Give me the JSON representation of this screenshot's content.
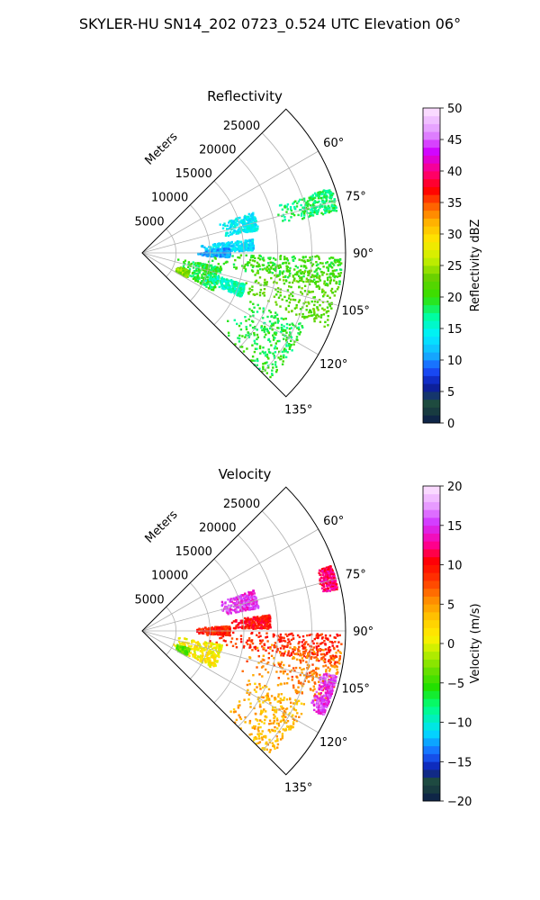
{
  "figure": {
    "suptitle": "SKYLER-HU  SN14_202  0723_0.524 UTC Elevation 06°"
  },
  "chart_data": [
    {
      "type": "heatmap",
      "projection": "polar-sector",
      "title": "Reflectivity",
      "radial_label": "Meters",
      "r_ticks": [
        5000,
        10000,
        15000,
        20000,
        25000
      ],
      "r_tick_labels": [
        "5000",
        "10000",
        "15000",
        "20000",
        "25000"
      ],
      "rlim": [
        0,
        30000
      ],
      "theta_ticks": [
        60,
        75,
        90,
        105,
        120,
        135
      ],
      "theta_tick_labels": [
        "60°",
        "75°",
        "90°",
        "105°",
        "120°",
        "135°"
      ],
      "theta_range_deg": [
        45,
        135
      ],
      "grid": true,
      "colorbar": {
        "label": "Reflectivity dBZ",
        "vmin": 0,
        "vmax": 50,
        "ticks": [
          0,
          5,
          10,
          15,
          20,
          25,
          30,
          35,
          40,
          45,
          50
        ],
        "tick_labels": [
          "0",
          "5",
          "10",
          "15",
          "20",
          "25",
          "30",
          "35",
          "40",
          "45",
          "50"
        ]
      },
      "echo_regions": [
        {
          "theta": [
            70,
            79
          ],
          "r": [
            12000,
            17500
          ],
          "value": 14
        },
        {
          "theta": [
            71,
            78
          ],
          "r": [
            20500,
            29500
          ],
          "value": 18
        },
        {
          "theta": [
            83,
            89
          ],
          "r": [
            8500,
            16500
          ],
          "value": 13
        },
        {
          "theta": [
            87,
            93
          ],
          "r": [
            8000,
            13000
          ],
          "value": 11
        },
        {
          "theta": [
            91,
            100
          ],
          "r": [
            9000,
            29500
          ],
          "value": 20
        },
        {
          "theta": [
            96,
            112
          ],
          "r": [
            14500,
            29500
          ],
          "value": 22
        },
        {
          "theta": [
            100,
            118
          ],
          "r": [
            5000,
            12000
          ],
          "value": 19
        },
        {
          "theta": [
            111,
            119
          ],
          "r": [
            5500,
            7500
          ],
          "value": 24
        },
        {
          "theta": [
            114,
            135
          ],
          "r": [
            16000,
            26500
          ],
          "value": 19
        },
        {
          "theta": [
            107,
            114
          ],
          "r": [
            10000,
            16000
          ],
          "value": 16
        }
      ]
    },
    {
      "type": "heatmap",
      "projection": "polar-sector",
      "title": "Velocity",
      "radial_label": "Meters",
      "r_ticks": [
        5000,
        10000,
        15000,
        20000,
        25000
      ],
      "r_tick_labels": [
        "5000",
        "10000",
        "15000",
        "20000",
        "25000"
      ],
      "rlim": [
        0,
        30000
      ],
      "theta_ticks": [
        60,
        75,
        90,
        105,
        120,
        135
      ],
      "theta_tick_labels": [
        "60°",
        "75°",
        "90°",
        "105°",
        "120°",
        "135°"
      ],
      "theta_range_deg": [
        45,
        135
      ],
      "grid": true,
      "colorbar": {
        "label": "Velocity (m/s)",
        "vmin": -20,
        "vmax": 20,
        "ticks": [
          -20,
          -15,
          -10,
          -5,
          0,
          5,
          10,
          15,
          20
        ],
        "tick_labels": [
          "−20",
          "−15",
          "−10",
          "−5",
          "0",
          "5",
          "10",
          "15",
          "20"
        ]
      },
      "echo_regions": [
        {
          "theta": [
            70,
            79
          ],
          "r": [
            12000,
            17500
          ],
          "value": 15
        },
        {
          "theta": [
            71,
            78
          ],
          "r": [
            27000,
            29500
          ],
          "value": 12
        },
        {
          "theta": [
            83,
            89
          ],
          "r": [
            13000,
            19000
          ],
          "value": 10
        },
        {
          "theta": [
            87,
            93
          ],
          "r": [
            8000,
            13000
          ],
          "value": 9
        },
        {
          "theta": [
            91,
            100
          ],
          "r": [
            9000,
            29500
          ],
          "value": 9
        },
        {
          "theta": [
            96,
            112
          ],
          "r": [
            14500,
            29500
          ],
          "value": 6
        },
        {
          "theta": [
            100,
            118
          ],
          "r": [
            5000,
            12000
          ],
          "value": 1
        },
        {
          "theta": [
            111,
            119
          ],
          "r": [
            5500,
            7500
          ],
          "value": -4
        },
        {
          "theta": [
            114,
            135
          ],
          "r": [
            16000,
            26500
          ],
          "value": 4
        },
        {
          "theta": [
            103,
            115
          ],
          "r": [
            27000,
            29500
          ],
          "value": 15
        }
      ]
    }
  ],
  "colors": {
    "background": "#ffffff",
    "grid": "#b0b0b0",
    "axis": "#000000"
  }
}
